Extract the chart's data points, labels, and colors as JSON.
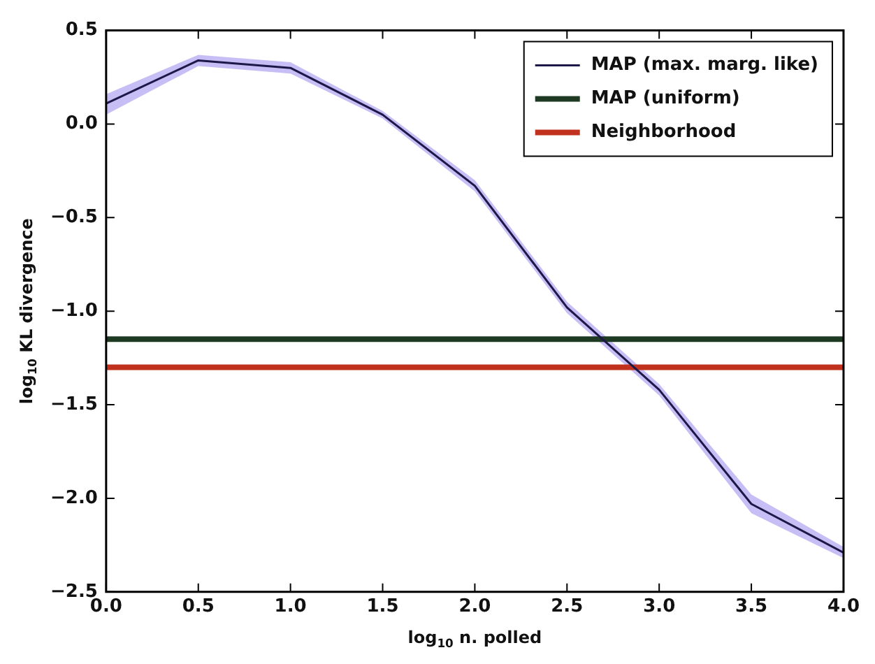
{
  "chart_data": {
    "type": "line",
    "xlabel": "log$_{10}$ n. polled",
    "ylabel": "log$_{10}$ KL divergence",
    "x": [
      0,
      0.5,
      1,
      1.5,
      2,
      2.5,
      3,
      3.5,
      4
    ],
    "series": [
      {
        "name": "MAP (max. marg. like)",
        "color": "#1c1848",
        "values": [
          0.11,
          0.34,
          0.3,
          0.05,
          -0.33,
          -0.98,
          -1.42,
          -2.03,
          -2.29
        ],
        "lower": [
          0.05,
          0.31,
          0.27,
          0.03,
          -0.36,
          -1.01,
          -1.45,
          -2.08,
          -2.32
        ],
        "upper": [
          0.16,
          0.37,
          0.33,
          0.07,
          -0.3,
          -0.95,
          -1.39,
          -1.98,
          -2.26
        ]
      },
      {
        "name": "MAP (uniform)",
        "color": "#1e3a22",
        "values": [
          -1.15,
          -1.15,
          -1.15,
          -1.15,
          -1.15,
          -1.15,
          -1.15,
          -1.15,
          -1.15
        ]
      },
      {
        "name": "Neighborhood",
        "color": "#c0321e",
        "values": [
          -1.3,
          -1.3,
          -1.3,
          -1.3,
          -1.3,
          -1.3,
          -1.3,
          -1.3,
          -1.3
        ]
      }
    ],
    "xlim": [
      0,
      4
    ],
    "ylim": [
      -2.5,
      0.5
    ],
    "xticks": [
      {
        "value": 0,
        "label": "0.0"
      },
      {
        "value": 0.5,
        "label": "0.5"
      },
      {
        "value": 1,
        "label": "1.0"
      },
      {
        "value": 1.5,
        "label": "1.5"
      },
      {
        "value": 2,
        "label": "2.0"
      },
      {
        "value": 2.5,
        "label": "2.5"
      },
      {
        "value": 3,
        "label": "3.0"
      },
      {
        "value": 3.5,
        "label": "3.5"
      },
      {
        "value": 4,
        "label": "4.0"
      }
    ],
    "yticks": [
      {
        "value": -2.5,
        "label": "−2.5"
      },
      {
        "value": -2,
        "label": "−2.0"
      },
      {
        "value": -1.5,
        "label": "−1.5"
      },
      {
        "value": -1,
        "label": "−1.0"
      },
      {
        "value": -0.5,
        "label": "−0.5"
      },
      {
        "value": 0,
        "label": "0.0"
      },
      {
        "value": 0.5,
        "label": "0.5"
      }
    ],
    "grid": false,
    "legend": "top right",
    "marker": "none",
    "line_style": "solid"
  }
}
